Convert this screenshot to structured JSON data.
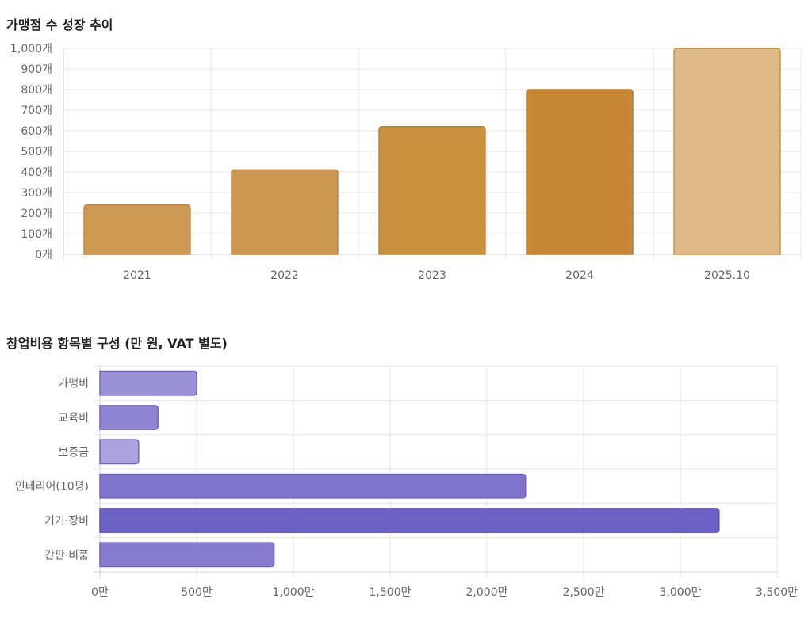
{
  "chart_data": [
    {
      "type": "bar",
      "orientation": "vertical",
      "title": "가맹점 수 성장 추이",
      "categories": [
        "2021",
        "2022",
        "2023",
        "2024",
        "2025.10"
      ],
      "values": [
        240,
        410,
        620,
        800,
        1000
      ],
      "ylim": [
        0,
        1000
      ],
      "yticks": [
        0,
        100,
        200,
        300,
        400,
        500,
        600,
        700,
        800,
        900,
        1000
      ],
      "ytick_labels": [
        "0개",
        "100개",
        "200개",
        "300개",
        "400개",
        "500개",
        "600개",
        "700개",
        "800개",
        "900개",
        "1,000개"
      ],
      "bar_colors": [
        "#cd9a55",
        "#cc9750",
        "#c8903f",
        "#c68835",
        "#ddba88"
      ],
      "border_colors": [
        "#c08a40",
        "#be883c",
        "#ba8234",
        "#b87a2c",
        "#c8953f"
      ],
      "grid": true,
      "legend": "none"
    },
    {
      "type": "bar",
      "orientation": "horizontal",
      "title": "창업비용 항목별 구성 (만 원, VAT 별도)",
      "categories": [
        "가맹비",
        "교육비",
        "보증금",
        "인테리어(10평)",
        "기기·장비",
        "간판·비품"
      ],
      "values": [
        500,
        300,
        200,
        2200,
        3200,
        900
      ],
      "xlim": [
        0,
        3500
      ],
      "xticks": [
        0,
        500,
        1000,
        1500,
        2000,
        2500,
        3000,
        3500
      ],
      "xtick_labels": [
        "0만",
        "500만",
        "1,000만",
        "1,500만",
        "2,000만",
        "2,500만",
        "3,000만",
        "3,500만"
      ],
      "bar_colors": [
        "#9b91d8",
        "#8f84d3",
        "#aba2de",
        "#7f73cc",
        "#6b60c4",
        "#877bcf"
      ],
      "border_colors": [
        "#6f63c2",
        "#6f63c2",
        "#6f63c2",
        "#6f63c2",
        "#5a4eb8",
        "#6f63c2"
      ],
      "grid": true,
      "legend": "none"
    }
  ]
}
